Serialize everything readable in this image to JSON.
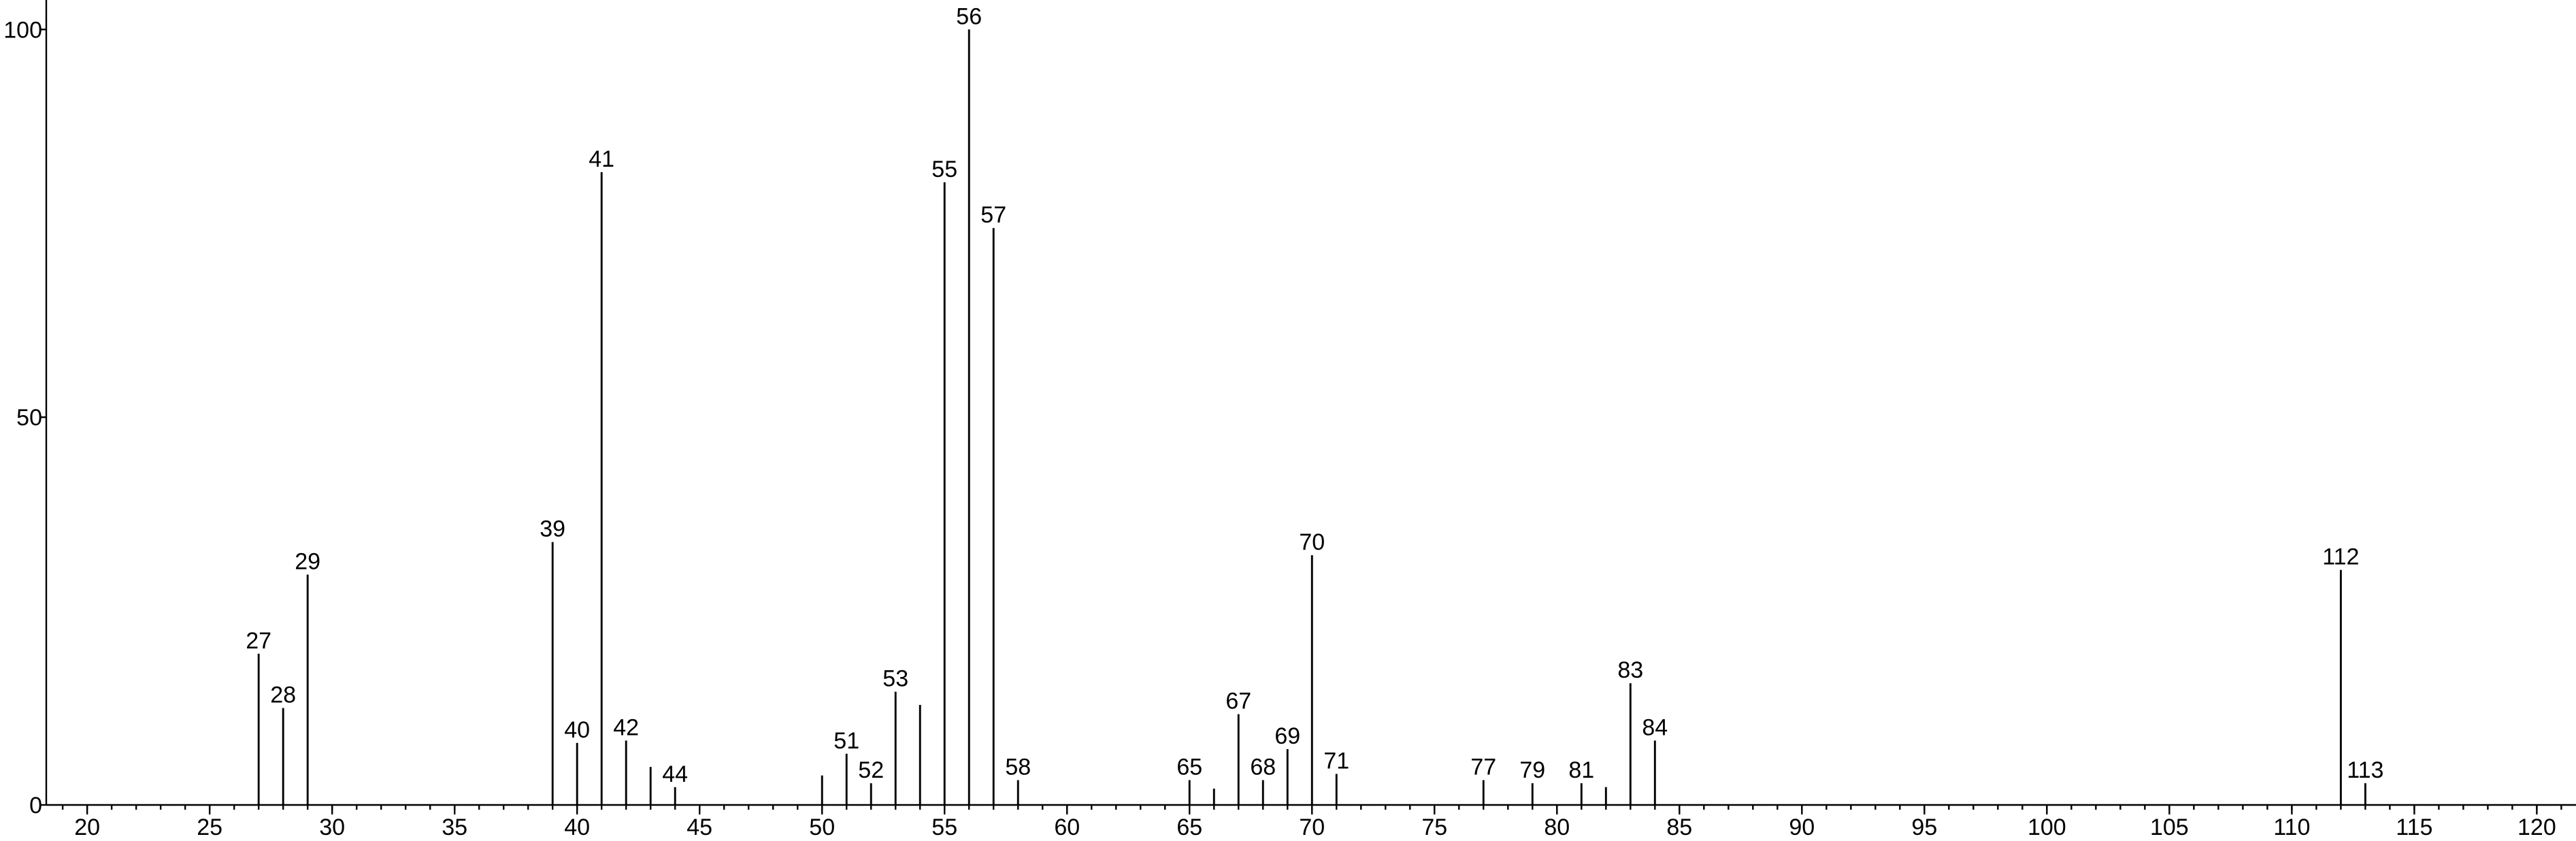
{
  "chart_data": {
    "type": "stem",
    "x": [
      27,
      28,
      29,
      39,
      40,
      41,
      42,
      43,
      44,
      50,
      51,
      52,
      53,
      54,
      55,
      56,
      57,
      58,
      65,
      66,
      67,
      68,
      69,
      70,
      71,
      77,
      79,
      81,
      82,
      83,
      84,
      112,
      113
    ],
    "values": [
      19.5,
      12.5,
      29.7,
      33.9,
      8,
      81.6,
      8.3,
      4.9,
      2.3,
      3.8,
      6.6,
      2.8,
      14.6,
      12.9,
      80.3,
      100,
      74.4,
      3.2,
      3.2,
      2.1,
      11.7,
      3.2,
      7.2,
      32.2,
      4,
      3.2,
      2.8,
      2.8,
      2.3,
      15.7,
      8.3,
      30.3,
      2.8
    ],
    "labels": [
      27,
      28,
      29,
      39,
      40,
      41,
      42,
      null,
      44,
      null,
      51,
      52,
      53,
      null,
      55,
      56,
      57,
      58,
      65,
      null,
      67,
      68,
      69,
      70,
      71,
      77,
      79,
      81,
      null,
      83,
      84,
      112,
      113
    ],
    "color": "#000000",
    "xlim": [
      18.33,
      121.6
    ],
    "xticks": [
      20,
      25,
      30,
      35,
      40,
      45,
      50,
      55,
      60,
      65,
      70,
      75,
      80,
      85,
      90,
      95,
      100,
      105,
      110,
      115,
      120
    ],
    "xminor_step": 1,
    "ylim": [
      0,
      103.8
    ],
    "yticks": [
      0,
      50,
      100
    ]
  }
}
